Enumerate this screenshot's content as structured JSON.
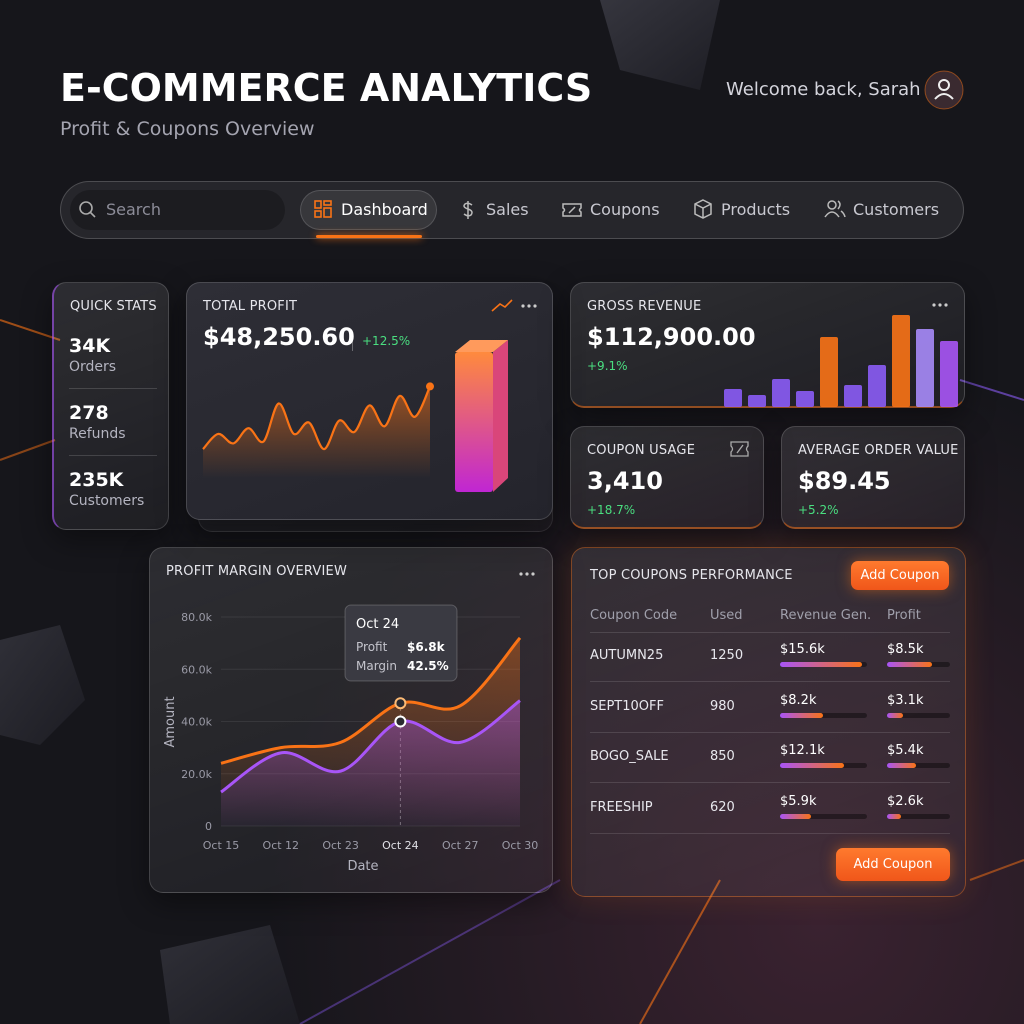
{
  "header": {
    "title": "E-COMMERCE ANALYTICS",
    "subtitle": "Profit & Coupons Overview",
    "welcome": "Welcome back, Sarah"
  },
  "nav": {
    "search_placeholder": "Search",
    "items": [
      "Dashboard",
      "Sales",
      "Coupons",
      "Products",
      "Customers"
    ]
  },
  "quick_stats": {
    "title": "QUICK STATS",
    "items": [
      {
        "value": "34K",
        "label": "Orders"
      },
      {
        "value": "278",
        "label": "Refunds"
      },
      {
        "value": "235K",
        "label": "Customers"
      }
    ]
  },
  "total_profit": {
    "title": "TOTAL PROFIT",
    "value": "$48,250.60",
    "change": "+12.5%",
    "sparkline": [
      22,
      38,
      28,
      44,
      30,
      70,
      38,
      50,
      22,
      52,
      40,
      68,
      46,
      78,
      56,
      88
    ]
  },
  "gross_revenue": {
    "title": "GROSS REVENUE",
    "value": "$112,900.00",
    "change": "+9.1%",
    "bars": [
      {
        "value": 18,
        "color": "#8b5cf6"
      },
      {
        "value": 12,
        "color": "#8b5cf6"
      },
      {
        "value": 28,
        "color": "#8b5cf6"
      },
      {
        "value": 16,
        "color": "#8b5cf6"
      },
      {
        "value": 70,
        "color": "#f97316"
      },
      {
        "value": 22,
        "color": "#8b5cf6"
      },
      {
        "value": 42,
        "color": "#8b5cf6"
      },
      {
        "value": 92,
        "color": "#f97316"
      },
      {
        "value": 78,
        "color": "#a78bfa"
      },
      {
        "value": 66,
        "color": "#a855f7"
      }
    ]
  },
  "coupon_usage": {
    "title": "COUPON USAGE",
    "value": "3,410",
    "change": "+18.7%"
  },
  "average_order_value": {
    "title": "AVERAGE ORDER VALUE",
    "value": "$89.45",
    "change": "+5.2%"
  },
  "profit_margin": {
    "title": "PROFIT MARGIN OVERVIEW",
    "chart": {
      "type": "line",
      "x_label": "Date",
      "y_label": "Amount",
      "categories": [
        "Oct 15",
        "Oct 12",
        "Oct 23",
        "Oct 24",
        "Oct 27",
        "Oct 30"
      ],
      "series": [
        {
          "name": "Profit",
          "color": "#f97316",
          "values": [
            24000,
            30000,
            32000,
            47000,
            46000,
            72000
          ]
        },
        {
          "name": "Margin",
          "color": "#a855f7",
          "values": [
            13000,
            28000,
            21000,
            40000,
            32000,
            48000
          ]
        }
      ],
      "ylim": [
        0,
        80000
      ],
      "yticks": [
        0,
        {
          "value": 20000,
          "label": "20.0k"
        },
        {
          "value": 40000,
          "label": "40.0k"
        },
        {
          "value": 60000,
          "label": "60.0k"
        },
        {
          "value": 80000,
          "label": "80.0k"
        }
      ],
      "grid": true
    },
    "tooltip": {
      "values": [
        "$6.8k",
        "42.5%"
      ]
    }
  },
  "top_coupons": {
    "title": "TOP COUPONS PERFORMANCE",
    "button": "Add Coupon",
    "columns": [
      "Coupon Code",
      "Used",
      "Revenue Gen.",
      "Profit"
    ],
    "rows": [
      {
        "code": "AUTUMN25",
        "used": 1250,
        "revenue": {
          "value": 15600,
          "label": "$15.6k"
        },
        "profit": {
          "value": 8500,
          "label": "$8.5k"
        }
      },
      {
        "code": "SEPT10OFF",
        "used": 980,
        "revenue": {
          "value": 8200,
          "label": "$8.2k"
        },
        "profit": {
          "value": 3100,
          "label": "$3.1k"
        }
      },
      {
        "code": "BOGO_SALE",
        "used": 850,
        "revenue": {
          "value": 12100,
          "label": "$12.1k"
        },
        "profit": {
          "value": 5400,
          "label": "$5.4k"
        }
      },
      {
        "code": "FREESHIP",
        "used": 620,
        "revenue": {
          "value": 5900,
          "label": "$5.9k"
        },
        "profit": {
          "value": 2600,
          "label": "$2.6k"
        }
      }
    ],
    "footer_button": "Add Coupon"
  }
}
